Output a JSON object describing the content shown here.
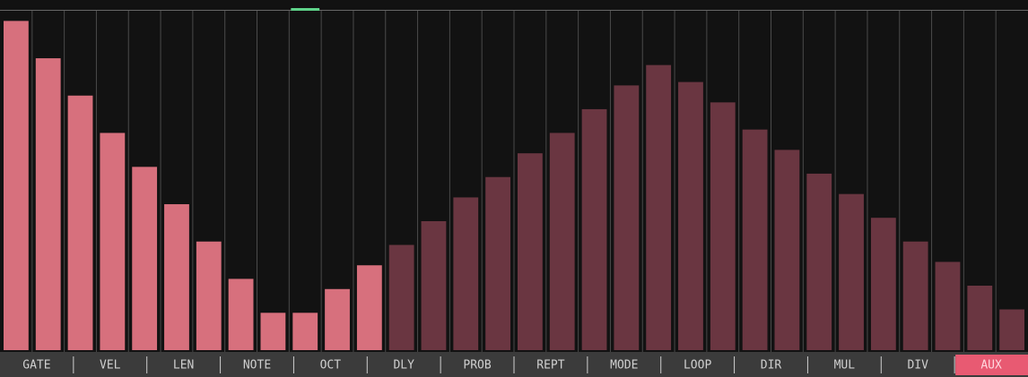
{
  "steps": {
    "values": [
      97,
      86,
      75,
      64,
      54,
      43,
      32,
      21,
      11,
      11,
      18,
      25,
      31,
      38,
      45,
      51,
      58,
      64,
      71,
      78,
      84,
      79,
      73,
      65,
      59,
      52,
      46,
      39,
      32,
      26,
      19,
      12
    ],
    "range": [
      0,
      100
    ],
    "lit_steps": 12,
    "playhead": 9,
    "lit_color": "#d7707d",
    "dim_color": "#6a3641",
    "playhead_color": "#5fd38a"
  },
  "tabs": {
    "labels": [
      "GATE",
      "VEL",
      "LEN",
      "NOTE",
      "OCT",
      "DLY",
      "PROB",
      "REPT",
      "MODE",
      "LOOP",
      "DIR",
      "MUL",
      "DIV",
      "AUX"
    ],
    "active": 13
  }
}
